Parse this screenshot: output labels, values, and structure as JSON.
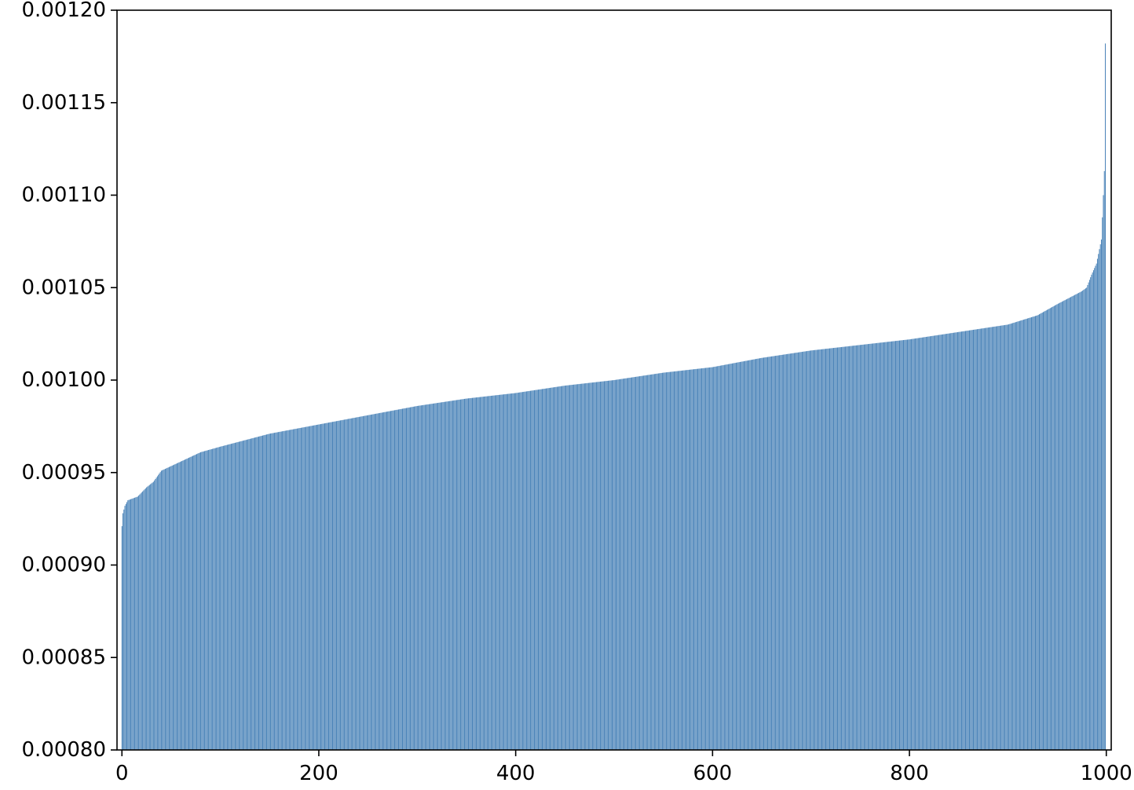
{
  "chart_data": {
    "type": "bar",
    "title": "",
    "xlabel": "",
    "ylabel": "",
    "n_bars": 1000,
    "xlim": [
      -5,
      1005
    ],
    "ylim": [
      0.0008,
      0.0012
    ],
    "x_ticks": [
      0,
      200,
      400,
      600,
      800,
      1000
    ],
    "x_tick_labels": [
      "0",
      "200",
      "400",
      "600",
      "800",
      "1000"
    ],
    "y_ticks": [
      0.0008,
      0.00085,
      0.0009,
      0.00095,
      0.001,
      0.00105,
      0.0011,
      0.00115,
      0.0012
    ],
    "y_tick_labels": [
      "0.00080",
      "0.00085",
      "0.00090",
      "0.00095",
      "0.00100",
      "0.00105",
      "0.00110",
      "0.00115",
      "0.00120"
    ],
    "grid": false,
    "legend": "none",
    "bar_color": "#4a83b8",
    "sorted_ascending": true,
    "value_profile": [
      [
        0,
        0.000921
      ],
      [
        1,
        0.000928
      ],
      [
        3,
        0.000932
      ],
      [
        6,
        0.000935
      ],
      [
        16,
        0.000937
      ],
      [
        25,
        0.000942
      ],
      [
        32,
        0.000945
      ],
      [
        40,
        0.000951
      ],
      [
        60,
        0.000956
      ],
      [
        80,
        0.000961
      ],
      [
        100,
        0.000964
      ],
      [
        150,
        0.000971
      ],
      [
        200,
        0.000976
      ],
      [
        250,
        0.000981
      ],
      [
        300,
        0.000986
      ],
      [
        350,
        0.00099
      ],
      [
        400,
        0.000993
      ],
      [
        450,
        0.000997
      ],
      [
        500,
        0.001
      ],
      [
        550,
        0.001004
      ],
      [
        600,
        0.001007
      ],
      [
        650,
        0.001012
      ],
      [
        700,
        0.001016
      ],
      [
        750,
        0.001019
      ],
      [
        800,
        0.001022
      ],
      [
        850,
        0.001026
      ],
      [
        900,
        0.00103
      ],
      [
        930,
        0.001035
      ],
      [
        950,
        0.001041
      ],
      [
        975,
        0.001048
      ],
      [
        980,
        0.00105
      ],
      [
        985,
        0.001057
      ],
      [
        990,
        0.001063
      ],
      [
        995,
        0.001076
      ],
      [
        997,
        0.0011
      ],
      [
        998,
        0.001113
      ],
      [
        999,
        0.001182
      ]
    ]
  }
}
